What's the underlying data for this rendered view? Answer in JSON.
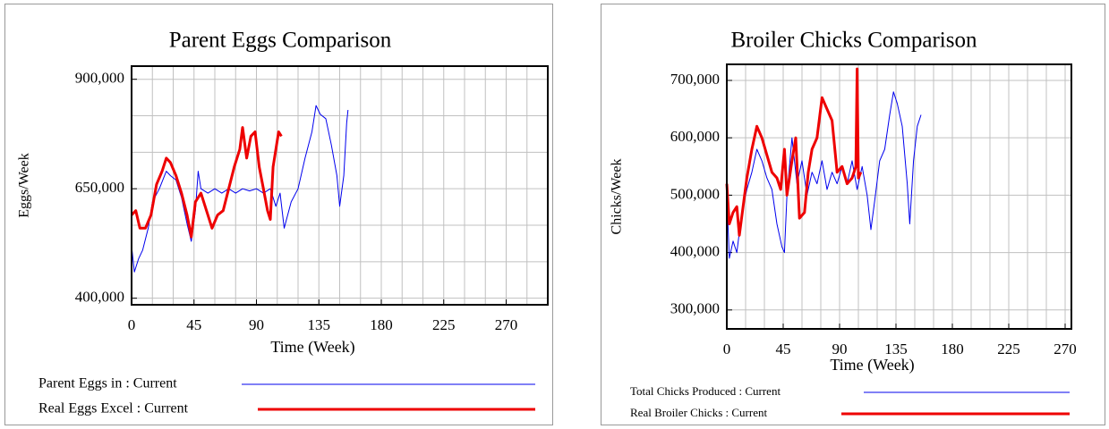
{
  "chart_data": [
    {
      "type": "line",
      "title": "Parent Eggs Comparison",
      "x_label": "Time (Week)",
      "y_label": "Eggs/Week",
      "xlim": [
        0,
        300
      ],
      "xticks": [
        0,
        45,
        90,
        135,
        180,
        225,
        270
      ],
      "xgrid": [
        0,
        15,
        30,
        45,
        60,
        75,
        90,
        105,
        120,
        135,
        150,
        165,
        180,
        195,
        210,
        225,
        240,
        255,
        270,
        285,
        300
      ],
      "ylim": [
        385000,
        930000
      ],
      "yticks": [
        {
          "value": 400000,
          "label": "400,000"
        },
        {
          "value": 650000,
          "label": "650,000"
        },
        {
          "value": 900000,
          "label": "900,000"
        }
      ],
      "ygrid": [
        400000,
        483333,
        566667,
        650000,
        733333,
        816667,
        900000
      ],
      "grid": true,
      "series": [
        {
          "name": "Parent Eggs in : Current",
          "color": "#0000ee",
          "width": 1,
          "x": [
            0,
            2,
            5,
            8,
            12,
            15,
            20,
            25,
            28,
            32,
            36,
            40,
            43,
            46,
            48,
            50,
            55,
            60,
            65,
            70,
            75,
            80,
            85,
            90,
            95,
            100,
            104,
            107,
            110,
            115,
            120,
            125,
            130,
            133,
            136,
            140,
            144,
            148,
            150,
            153,
            155,
            156
          ],
          "values": [
            520000,
            460000,
            490000,
            510000,
            560000,
            620000,
            650000,
            690000,
            680000,
            670000,
            630000,
            570000,
            530000,
            600000,
            690000,
            650000,
            640000,
            650000,
            640000,
            650000,
            640000,
            650000,
            645000,
            650000,
            640000,
            650000,
            610000,
            640000,
            560000,
            620000,
            650000,
            720000,
            780000,
            840000,
            820000,
            810000,
            750000,
            680000,
            610000,
            680000,
            800000,
            830000
          ]
        },
        {
          "name": "Real Eggs Excel : Current",
          "color": "#ee0000",
          "width": 3,
          "x": [
            0,
            3,
            6,
            10,
            14,
            18,
            22,
            25,
            28,
            32,
            36,
            40,
            43,
            46,
            50,
            54,
            58,
            62,
            66,
            70,
            74,
            78,
            80,
            83,
            86,
            89,
            92,
            95,
            98,
            100,
            102,
            104,
            106,
            108
          ],
          "values": [
            590000,
            600000,
            560000,
            560000,
            590000,
            660000,
            690000,
            720000,
            710000,
            680000,
            640000,
            590000,
            540000,
            620000,
            640000,
            600000,
            560000,
            590000,
            600000,
            650000,
            700000,
            740000,
            790000,
            720000,
            770000,
            780000,
            700000,
            650000,
            600000,
            580000,
            700000,
            740000,
            780000,
            770000
          ]
        }
      ]
    },
    {
      "type": "line",
      "title": "Broiler Chicks Comparison",
      "x_label": "Time (Week)",
      "y_label": "Chicks/Week",
      "xlim": [
        0,
        275
      ],
      "xticks": [
        0,
        45,
        90,
        135,
        180,
        225,
        270
      ],
      "xgrid": [
        0,
        15,
        30,
        45,
        60,
        75,
        90,
        105,
        120,
        135,
        150,
        165,
        180,
        195,
        210,
        225,
        240,
        255,
        270
      ],
      "ylim": [
        267000,
        728000
      ],
      "yticks": [
        {
          "value": 300000,
          "label": "300,000"
        },
        {
          "value": 400000,
          "label": "400,000"
        },
        {
          "value": 500000,
          "label": "500,000"
        },
        {
          "value": 600000,
          "label": "600,000"
        },
        {
          "value": 700000,
          "label": "700,000"
        }
      ],
      "ygrid": [
        300000,
        400000,
        500000,
        600000,
        700000
      ],
      "grid": true,
      "series": [
        {
          "name": "Total Chicks Produced : Current",
          "color": "#0000ee",
          "width": 1,
          "x": [
            0,
            2,
            5,
            8,
            12,
            16,
            20,
            24,
            28,
            32,
            36,
            40,
            44,
            46,
            48,
            52,
            56,
            60,
            64,
            68,
            72,
            76,
            80,
            84,
            88,
            92,
            96,
            100,
            104,
            108,
            112,
            115,
            118,
            122,
            126,
            130,
            133,
            136,
            140,
            144,
            146,
            149,
            152,
            155
          ],
          "values": [
            500000,
            390000,
            420000,
            400000,
            470000,
            510000,
            540000,
            580000,
            560000,
            530000,
            510000,
            450000,
            410000,
            400000,
            500000,
            600000,
            520000,
            560000,
            500000,
            540000,
            520000,
            560000,
            510000,
            540000,
            520000,
            550000,
            520000,
            560000,
            510000,
            550000,
            500000,
            440000,
            490000,
            560000,
            580000,
            640000,
            680000,
            660000,
            620000,
            520000,
            450000,
            560000,
            620000,
            640000
          ]
        },
        {
          "name": "Real Broiler Chicks : Current",
          "color": "#ee0000",
          "width": 3,
          "x": [
            0,
            2,
            5,
            8,
            10,
            13,
            16,
            20,
            24,
            28,
            32,
            36,
            40,
            43,
            46,
            48,
            52,
            55,
            58,
            62,
            65,
            68,
            72,
            76,
            80,
            84,
            88,
            92,
            96,
            100,
            103,
            104,
            105,
            107
          ],
          "values": [
            520000,
            450000,
            470000,
            480000,
            430000,
            480000,
            530000,
            580000,
            620000,
            600000,
            570000,
            540000,
            530000,
            510000,
            580000,
            500000,
            560000,
            600000,
            460000,
            470000,
            540000,
            580000,
            600000,
            670000,
            650000,
            630000,
            540000,
            550000,
            520000,
            530000,
            550000,
            720000,
            530000,
            540000
          ]
        }
      ]
    }
  ]
}
